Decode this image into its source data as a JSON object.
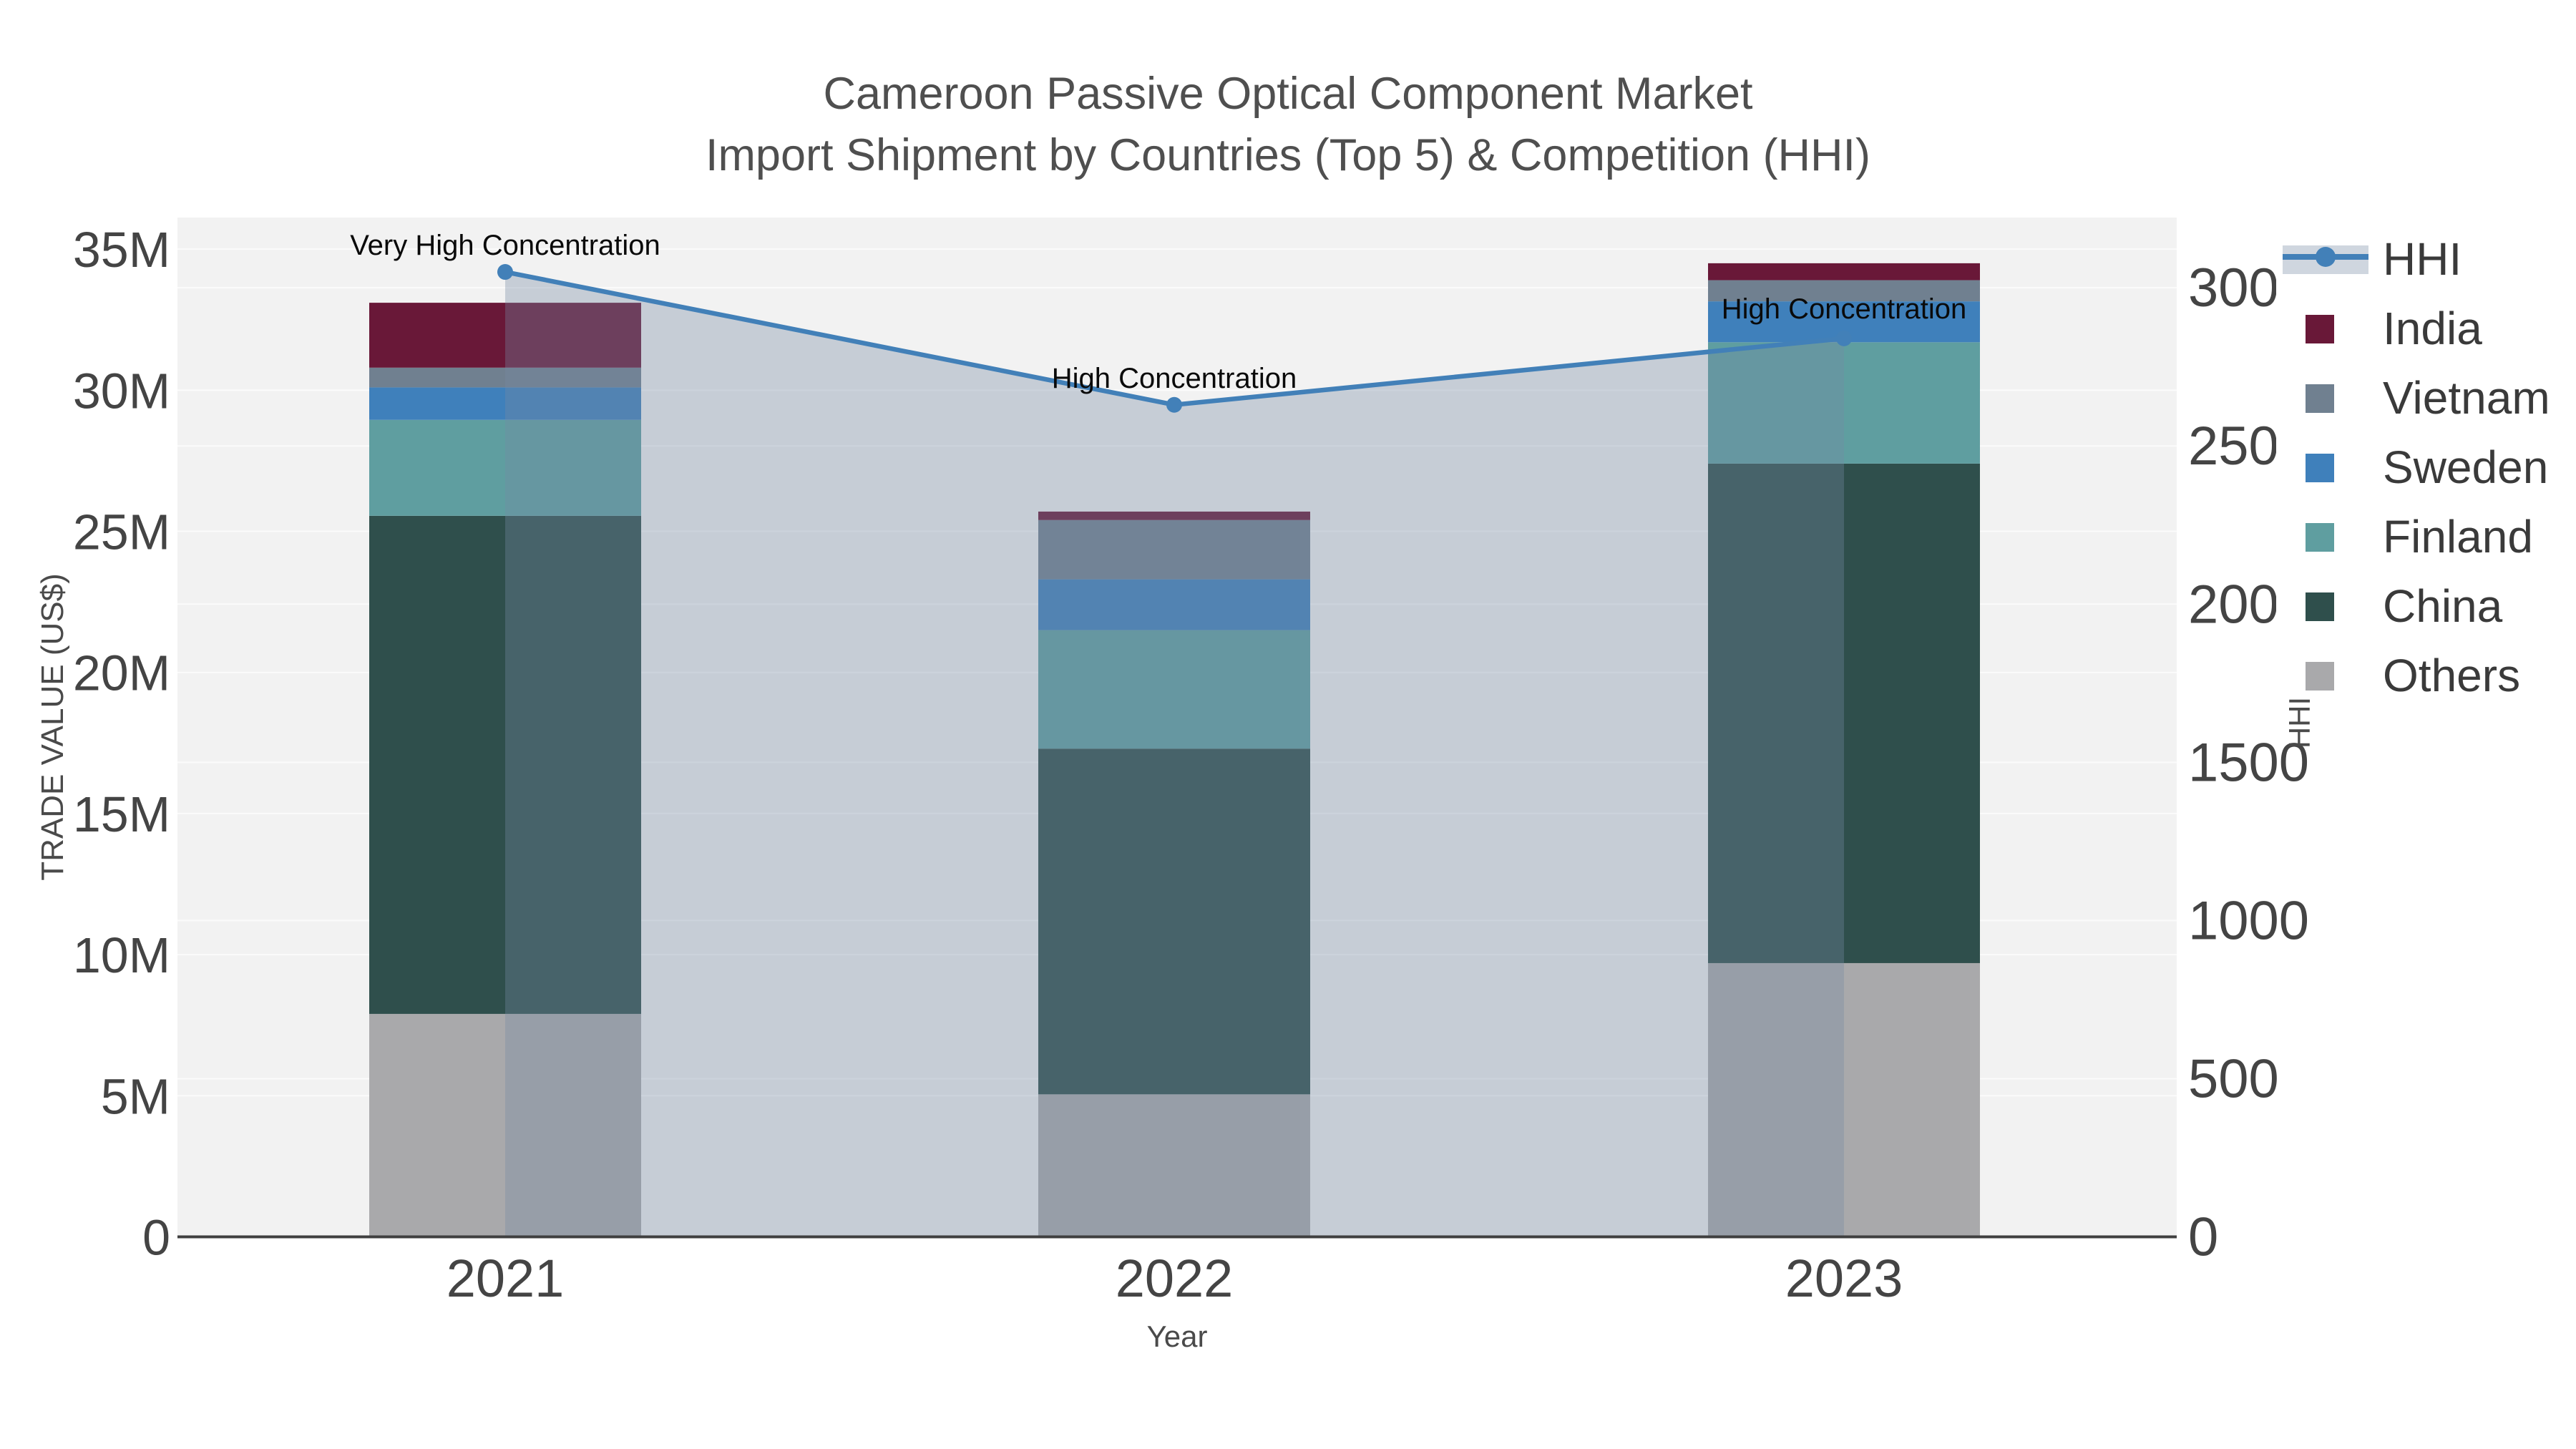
{
  "chart_data": {
    "type": "bar",
    "subtype": "stacked-bars-with-line-dual-axis",
    "title": "Cameroon Passive Optical Component Market",
    "subtitle": "Import Shipment by Countries (Top 5) & Competition (HHI)",
    "categories": [
      "2021",
      "2022",
      "2023"
    ],
    "xlabel": "Year",
    "y1": {
      "label": "TRADE VALUE (US$)",
      "tick_labels": [
        "0",
        "5M",
        "10M",
        "15M",
        "20M",
        "25M",
        "30M",
        "35M"
      ],
      "tick_values_musd": [
        0,
        5,
        10,
        15,
        20,
        25,
        30,
        35
      ],
      "axis_max_musd": 36.12,
      "grid": true
    },
    "y2": {
      "label": "HHI",
      "tick_labels": [
        "0",
        "500",
        "1000",
        "1500",
        "2000",
        "2500",
        "3000"
      ],
      "tick_values": [
        0,
        500,
        1000,
        1500,
        2000,
        2500,
        3000
      ],
      "axis_max": 3222,
      "grid": true
    },
    "series": [
      {
        "name": "Others",
        "color": "#A9A9AB",
        "values_musd": [
          7.9,
          5.05,
          9.7
        ]
      },
      {
        "name": "China",
        "color": "#2F4F4C",
        "values_musd": [
          17.65,
          12.25,
          17.7
        ]
      },
      {
        "name": "Finland",
        "color": "#5F9EA0",
        "values_musd": [
          3.4,
          4.2,
          4.3
        ]
      },
      {
        "name": "Sweden",
        "color": "#3F80BB",
        "values_musd": [
          1.15,
          1.8,
          1.45
        ]
      },
      {
        "name": "Vietnam",
        "color": "#708090",
        "values_musd": [
          0.7,
          2.1,
          0.75
        ]
      },
      {
        "name": "India",
        "color": "#691838",
        "values_musd": [
          2.3,
          0.3,
          0.6
        ]
      }
    ],
    "line": {
      "name": "HHI",
      "color": "#4280B8",
      "area_fill": "rgba(118,138,164,0.35)",
      "values": [
        3050,
        2630,
        2840
      ]
    },
    "annotations": [
      "Very High Concentration",
      "High Concentration",
      "High Concentration"
    ],
    "legend_order": [
      "HHI",
      "India",
      "Vietnam",
      "Sweden",
      "Finland",
      "China",
      "Others"
    ],
    "colors": {
      "plot_background": "#F2F2F2",
      "gridline": "#FBFBFB",
      "axis_line": "#404040"
    }
  }
}
